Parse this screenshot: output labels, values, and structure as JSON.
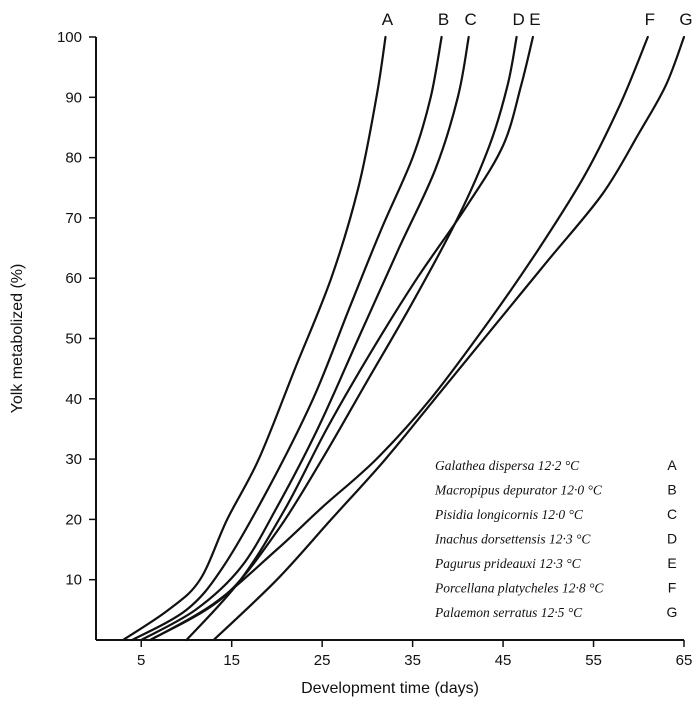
{
  "chart_data": {
    "type": "line",
    "title": "",
    "xlabel": "Development time (days)",
    "ylabel": "Yolk metabolized (%)",
    "xlim": [
      0,
      65
    ],
    "ylim": [
      0,
      100
    ],
    "xticks": [
      5,
      15,
      25,
      35,
      45,
      55,
      65
    ],
    "yticks": [
      10,
      20,
      30,
      40,
      50,
      60,
      70,
      80,
      90,
      100
    ],
    "grid": false,
    "legend_position": "bottom-right",
    "series": [
      {
        "name": "Galathea dispersa 12·2 °C",
        "letter": "A",
        "x": [
          3.0,
          8.0,
          11.5,
          14.5,
          18.0,
          22.0,
          26.0,
          29.0,
          31.0,
          32.0
        ],
        "y": [
          0,
          5,
          10,
          20,
          30,
          45,
          60,
          75,
          90,
          100
        ]
      },
      {
        "name": "Macropipus depurator 12·0 °C",
        "letter": "B",
        "x": [
          4.0,
          10.0,
          14.0,
          19.0,
          24.0,
          28.0,
          31.5,
          35.0,
          37.0,
          38.2
        ],
        "y": [
          0,
          5,
          12,
          25,
          40,
          55,
          68,
          80,
          90,
          100
        ]
      },
      {
        "name": "Pisidia longicornis 12·0 °C",
        "letter": "C",
        "x": [
          5.0,
          11.0,
          16.0,
          20.0,
          24.5,
          29.0,
          33.5,
          37.5,
          40.0,
          41.2
        ],
        "y": [
          0,
          5,
          12,
          22,
          35,
          50,
          65,
          78,
          90,
          100
        ]
      },
      {
        "name": "Inachus dorsettensis 12·3 °C",
        "letter": "D",
        "x": [
          6.0,
          14.0,
          20.0,
          25.0,
          30.0,
          35.0,
          40.0,
          43.5,
          45.5,
          46.5
        ],
        "y": [
          0,
          7,
          18,
          30,
          43,
          56,
          70,
          82,
          92,
          100
        ]
      },
      {
        "name": "Pagurus prideauxi 12·3 °C",
        "letter": "E",
        "x": [
          10.0,
          16.0,
          21.0,
          25.5,
          30.5,
          35.5,
          41.0,
          45.0,
          47.0,
          48.3
        ],
        "y": [
          0,
          10,
          22,
          35,
          48,
          60,
          72,
          82,
          92,
          100
        ]
      },
      {
        "name": "Porcellana platycheles 12·8 °C",
        "letter": "F",
        "x": [
          6.0,
          13.0,
          20.0,
          25.0,
          31.0,
          37.0,
          43.5,
          49.0,
          54.0,
          58.0,
          61.0
        ],
        "y": [
          0,
          6,
          15,
          22,
          30,
          40,
          53,
          65,
          77,
          89,
          100
        ]
      },
      {
        "name": "Palaemon serratus 12·5 °C",
        "letter": "G",
        "x": [
          13.0,
          20.0,
          26.0,
          32.0,
          38.0,
          44.0,
          50.0,
          56.0,
          60.0,
          63.0,
          65.0
        ],
        "y": [
          0,
          10,
          20,
          30,
          41,
          52,
          63,
          74,
          84,
          92,
          100
        ]
      }
    ]
  }
}
